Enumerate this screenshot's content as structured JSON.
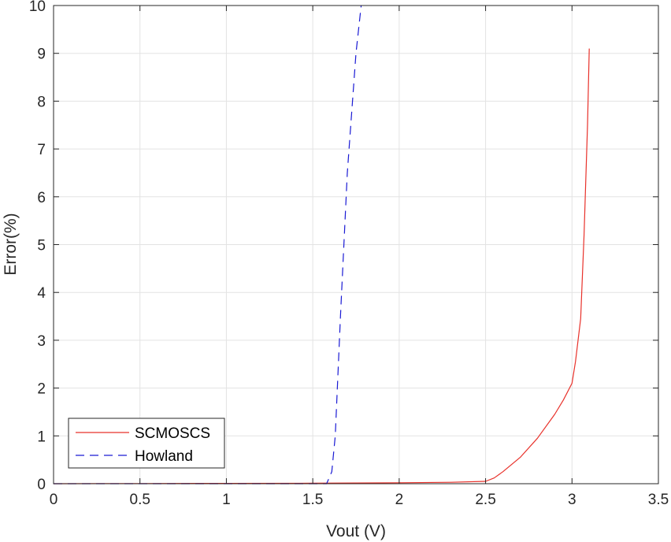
{
  "chart_data": {
    "type": "line",
    "xlabel": "Vout (V)",
    "ylabel": "Error(%)",
    "xlim": [
      0,
      3.5
    ],
    "ylim": [
      0,
      10
    ],
    "xticks": [
      "0",
      "0.5",
      "1",
      "1.5",
      "2",
      "2.5",
      "3",
      "3.5"
    ],
    "yticks": [
      "0",
      "1",
      "2",
      "3",
      "4",
      "5",
      "6",
      "7",
      "8",
      "9",
      "10"
    ],
    "grid": true,
    "legend_position": "bottom-left",
    "series": [
      {
        "name": "SCMOSCS",
        "color": "#e8312a",
        "style": "solid",
        "x": [
          0,
          0.5,
          1.0,
          1.5,
          2.0,
          2.3,
          2.5,
          2.55,
          2.6,
          2.7,
          2.8,
          2.9,
          2.95,
          3.0,
          3.02,
          3.05,
          3.07,
          3.09,
          3.1
        ],
        "y": [
          0,
          0.003,
          0.006,
          0.01,
          0.02,
          0.03,
          0.05,
          0.12,
          0.25,
          0.55,
          0.95,
          1.45,
          1.75,
          2.1,
          2.55,
          3.45,
          5.2,
          7.5,
          9.1
        ]
      },
      {
        "name": "Howland",
        "color": "#1a1ad4",
        "style": "dashed",
        "x": [
          0,
          0.5,
          1.0,
          1.5,
          1.58,
          1.61,
          1.63,
          1.66,
          1.7,
          1.75,
          1.78
        ],
        "y": [
          0,
          0,
          0,
          0,
          0,
          0.25,
          1.0,
          3.5,
          6.5,
          9.0,
          10.0
        ]
      }
    ]
  }
}
